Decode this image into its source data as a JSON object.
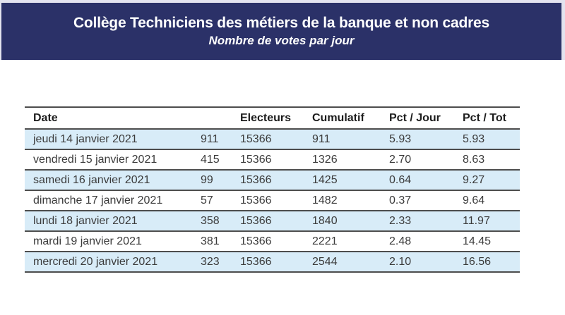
{
  "banner": {
    "title": "Collège Techniciens des métiers de la banque et non cadres",
    "subtitle": "Nombre de votes par jour",
    "background_color": "#2b3168",
    "text_color": "#ffffff"
  },
  "table": {
    "columns": [
      "Date",
      "",
      "Electeurs",
      "Cumulatif",
      "Pct / Jour",
      "Pct / Tot"
    ],
    "rows": [
      [
        "jeudi 14 janvier 2021",
        "911",
        "15366",
        "911",
        "5.93",
        "5.93"
      ],
      [
        "vendredi 15 janvier 2021",
        "415",
        "15366",
        "1326",
        "2.70",
        "8.63"
      ],
      [
        "samedi 16 janvier 2021",
        "99",
        "15366",
        "1425",
        "0.64",
        "9.27"
      ],
      [
        "dimanche 17 janvier 2021",
        "57",
        "15366",
        "1482",
        "0.37",
        "9.64"
      ],
      [
        "lundi 18 janvier 2021",
        "358",
        "15366",
        "1840",
        "2.33",
        "11.97"
      ],
      [
        "mardi 19 janvier 2021",
        "381",
        "15366",
        "2221",
        "2.48",
        "14.45"
      ],
      [
        "mercredi 20 janvier 2021",
        "323",
        "15366",
        "2544",
        "2.10",
        "16.56"
      ]
    ],
    "zebra_row_color": "#d8ecf8",
    "rule_color": "#4d4d4d"
  }
}
